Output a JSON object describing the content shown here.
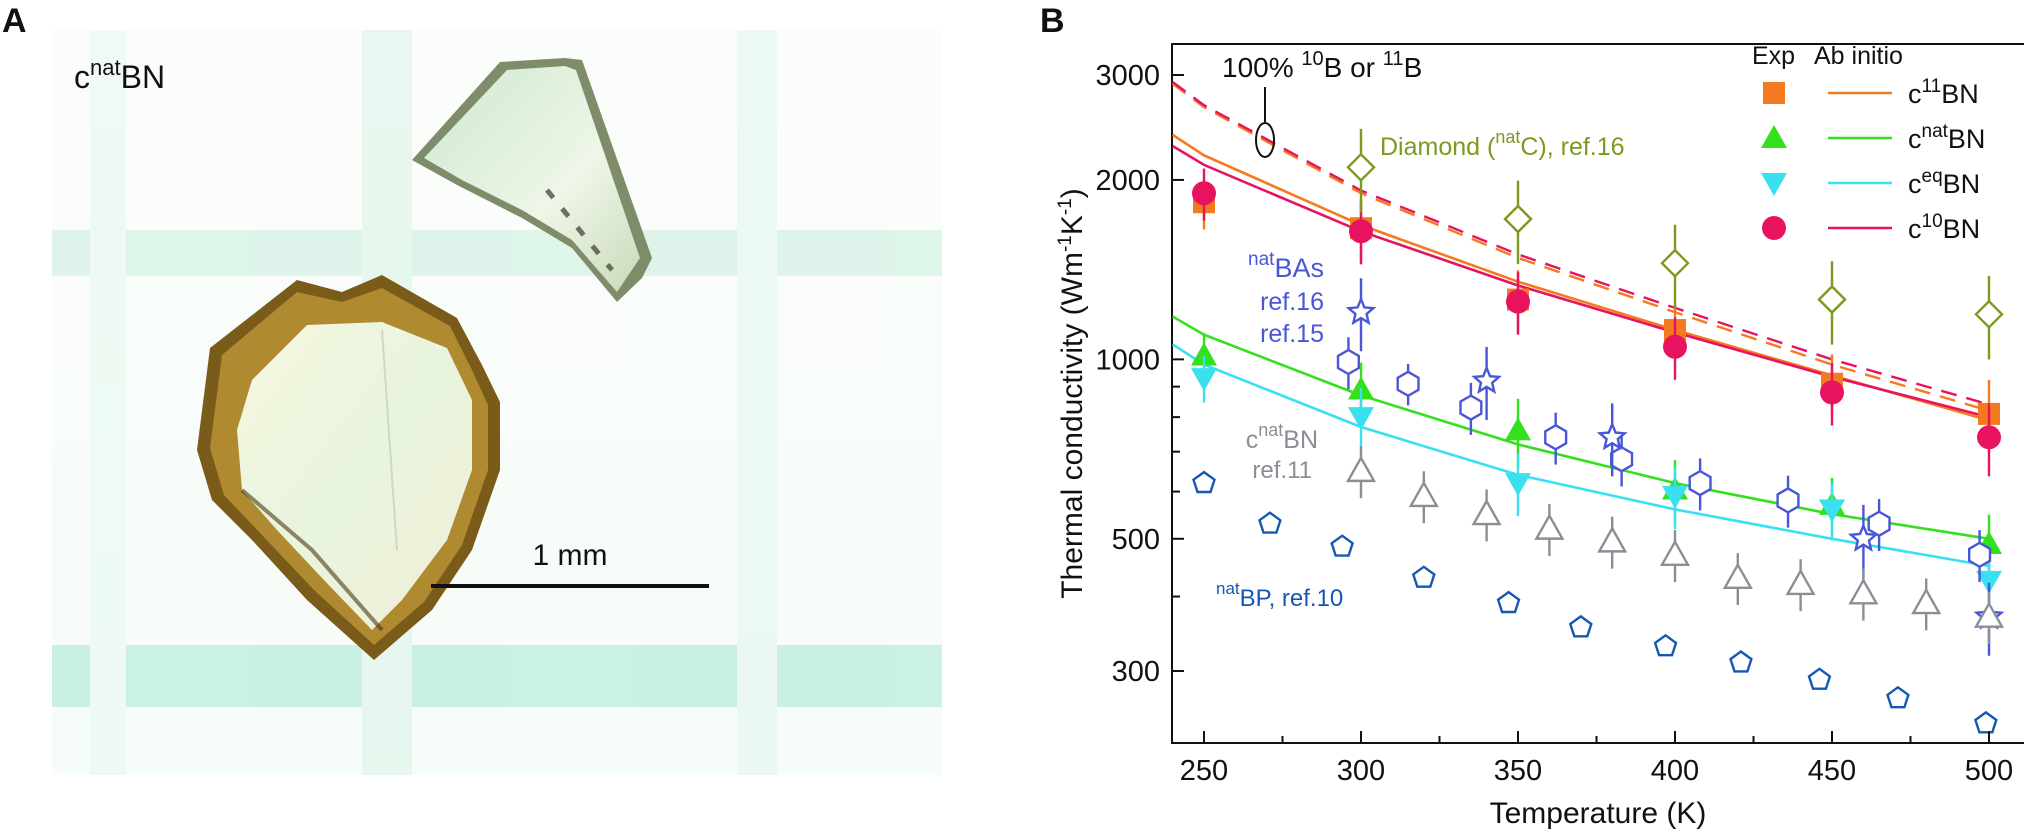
{
  "panels": {
    "a": {
      "letter": "A",
      "sample_label": {
        "base": "c",
        "sup": "nat",
        "rest": "BN"
      },
      "scale_bar_label": "1 mm"
    },
    "b": {
      "letter": "B"
    }
  },
  "colors": {
    "c11BN": "#f47a1f",
    "cnatBN": "#33e01c",
    "ceqBN": "#3ae0f0",
    "c10BN": "#e8135f",
    "diamond": "#7c9a1e",
    "natBAs": "#4a56d8",
    "cnatBN_ref11": "#8a8f95",
    "natBP": "#1458b4"
  },
  "chart_data": {
    "type": "scatter",
    "xlabel": "Temperature (K)",
    "ylabel": "Thermal conductivity (Wm-1K-1)",
    "ylabel_parts": {
      "main": "Thermal conductivity (Wm",
      "s1": "-1",
      "mid": "K",
      "s2": "-1",
      "end": ")"
    },
    "xlim": [
      240,
      505
    ],
    "ylim": [
      240,
      3400
    ],
    "yscale": "log",
    "x_ticks": [
      250,
      300,
      350,
      400,
      450,
      500
    ],
    "y_ticks": [
      300,
      500,
      1000,
      2000,
      3000
    ],
    "y_minor_ticks": [
      400,
      600,
      700,
      800,
      900
    ],
    "legend": {
      "position": "top-right",
      "header_exp": "Exp",
      "header_theory": "Ab initio",
      "entries": [
        {
          "key": "c11BN",
          "base": "c",
          "sup": "11",
          "rest": "BN",
          "marker": "square"
        },
        {
          "key": "cnatBN",
          "base": "c",
          "sup": "nat",
          "rest": "BN",
          "marker": "triangle-up"
        },
        {
          "key": "ceqBN",
          "base": "c",
          "sup": "eq",
          "rest": "BN",
          "marker": "triangle-down"
        },
        {
          "key": "c10BN",
          "base": "c",
          "sup": "10",
          "rest": "BN",
          "marker": "circle"
        }
      ]
    },
    "annotations": [
      {
        "key": "iso",
        "parts": [
          "100% ",
          "10",
          "B or ",
          "11",
          "B"
        ]
      },
      {
        "key": "diamond",
        "parts": [
          "Diamond (",
          "nat",
          "C), ref.16"
        ]
      },
      {
        "key": "bas",
        "parts": [
          "nat",
          "BAs"
        ],
        "line2": "ref.16",
        "line3": "ref.15"
      },
      {
        "key": "cbn11",
        "parts": [
          "c",
          "nat",
          "BN"
        ],
        "line2": "ref.11"
      },
      {
        "key": "bp",
        "parts": [
          "nat",
          "BP, ref.10"
        ]
      }
    ],
    "curves": [
      {
        "name": "c11BN ab initio",
        "style": "solid",
        "color_key": "c11BN",
        "x": [
          240,
          250,
          300,
          350,
          400,
          450,
          500
        ],
        "y": [
          2380,
          2200,
          1680,
          1350,
          1120,
          940,
          790
        ]
      },
      {
        "name": "c10BN ab initio",
        "style": "solid",
        "color_key": "c10BN",
        "x": [
          240,
          250,
          300,
          350,
          400,
          450,
          500
        ],
        "y": [
          2280,
          2120,
          1640,
          1330,
          1110,
          935,
          800
        ]
      },
      {
        "name": "cnatBN ab initio",
        "style": "solid",
        "color_key": "cnatBN",
        "x": [
          240,
          250,
          300,
          350,
          400,
          450,
          500
        ],
        "y": [
          1180,
          1100,
          870,
          720,
          620,
          550,
          500
        ]
      },
      {
        "name": "ceqBN ab initio",
        "style": "solid",
        "color_key": "ceqBN",
        "x": [
          240,
          250,
          300,
          350,
          400,
          450,
          500
        ],
        "y": [
          1060,
          980,
          770,
          640,
          560,
          500,
          450
        ]
      },
      {
        "name": "100% 11B",
        "style": "dashed",
        "color_key": "c11BN",
        "x": [
          240,
          250,
          300,
          350,
          400,
          450,
          500
        ],
        "y": [
          2900,
          2650,
          1900,
          1480,
          1200,
          980,
          820
        ]
      },
      {
        "name": "100% 10B",
        "style": "dashed",
        "color_key": "c10BN",
        "x": [
          240,
          250,
          300,
          350,
          400,
          450,
          500
        ],
        "y": [
          2920,
          2670,
          1920,
          1500,
          1220,
          1000,
          840
        ]
      }
    ],
    "series": [
      {
        "name": "c11BN exp",
        "color_key": "c11BN",
        "marker": "square",
        "filled": true,
        "x": [
          250,
          300,
          350,
          400,
          450,
          500
        ],
        "y": [
          1835,
          1660,
          1260,
          1120,
          910,
          810
        ],
        "err": [
          0.1,
          0.12,
          0.12,
          0.1,
          0.12,
          0.14
        ]
      },
      {
        "name": "c10BN exp",
        "color_key": "c10BN",
        "marker": "circle",
        "filled": true,
        "x": [
          250,
          300,
          350,
          400,
          450,
          500
        ],
        "y": [
          1900,
          1640,
          1250,
          1050,
          880,
          740
        ],
        "err": [
          0.1,
          0.12,
          0.12,
          0.12,
          0.12,
          0.14
        ]
      },
      {
        "name": "cnatBN exp",
        "color_key": "cnatBN",
        "marker": "triangle-up",
        "filled": true,
        "x": [
          250,
          300,
          350,
          400,
          450,
          500
        ],
        "y": [
          1015,
          890,
          760,
          605,
          570,
          490
        ],
        "err": [
          0.09,
          0.11,
          0.13,
          0.12,
          0.11,
          0.12
        ]
      },
      {
        "name": "ceqBN exp",
        "color_key": "ceqBN",
        "marker": "triangle-down",
        "filled": true,
        "x": [
          250,
          300,
          350,
          400,
          450,
          500
        ],
        "y": [
          930,
          800,
          620,
          590,
          560,
          425
        ],
        "err": [
          0.09,
          0.12,
          0.12,
          0.12,
          0.11,
          0.14
        ]
      },
      {
        "name": "Diamond (natC), ref.16",
        "color_key": "diamond",
        "marker": "diamond",
        "filled": false,
        "x": [
          300,
          350,
          400,
          450,
          500
        ],
        "y": [
          2100,
          1720,
          1450,
          1260,
          1190
        ],
        "err": [
          0.16,
          0.16,
          0.16,
          0.16,
          0.16
        ]
      },
      {
        "name": "natBAs ref.16",
        "color_key": "natBAs",
        "marker": "hexagon",
        "filled": false,
        "x": [
          296,
          315,
          335,
          362,
          383,
          408,
          436,
          465,
          497
        ],
        "y": [
          990,
          910,
          830,
          740,
          680,
          620,
          580,
          530,
          470
        ],
        "err": [
          0.1,
          0.08,
          0.1,
          0.1,
          0.1,
          0.1,
          0.1,
          0.1,
          0.1
        ]
      },
      {
        "name": "natBAs ref.15",
        "color_key": "natBAs",
        "marker": "star",
        "filled": false,
        "x": [
          300,
          340,
          380,
          460,
          500
        ],
        "y": [
          1200,
          920,
          740,
          500,
          370
        ],
        "err": [
          0.14,
          0.14,
          0.14,
          0.14,
          0.14
        ]
      },
      {
        "name": "cnatBN ref.11",
        "color_key": "cnatBN_ref11",
        "marker": "triangle-up",
        "filled": false,
        "x": [
          300,
          320,
          340,
          360,
          380,
          400,
          420,
          440,
          460,
          480,
          500
        ],
        "y": [
          650,
          590,
          550,
          520,
          495,
          470,
          430,
          420,
          405,
          390,
          370
        ],
        "err": [
          0.1,
          0.1,
          0.1,
          0.1,
          0.1,
          0.1,
          0.1,
          0.1,
          0.1,
          0.1,
          0.1
        ]
      },
      {
        "name": "natBP, ref.10",
        "color_key": "natBP",
        "marker": "pentagon",
        "filled": false,
        "x": [
          250,
          271,
          294,
          320,
          347,
          370,
          397,
          421,
          446,
          471,
          499
        ],
        "y": [
          620,
          530,
          485,
          430,
          390,
          355,
          330,
          310,
          290,
          270,
          245
        ],
        "err": []
      }
    ]
  }
}
